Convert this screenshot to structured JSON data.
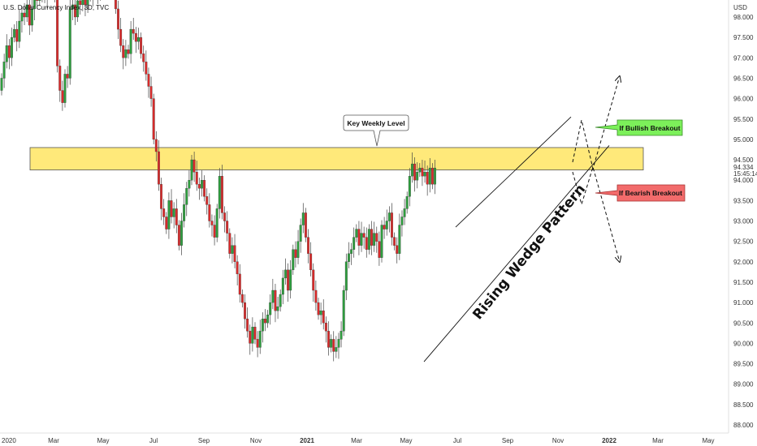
{
  "chart_data": {
    "type": "candlestick",
    "title": "U.S. Dollar Currency Index, 3D, TVC",
    "currency_label": "USD",
    "last_price": "94.334",
    "countdown": "15:45:14",
    "ylim": [
      88.0,
      98.0
    ],
    "y_ticks": [
      "98.000",
      "97.500",
      "97.000",
      "96.500",
      "96.000",
      "95.500",
      "95.000",
      "94.500",
      "94.000",
      "93.500",
      "93.000",
      "92.500",
      "92.000",
      "91.500",
      "91.000",
      "90.500",
      "90.000",
      "89.500",
      "89.000",
      "88.500",
      "88.000"
    ],
    "x_ticks": [
      "2020",
      "Mar",
      "May",
      "Jul",
      "Sep",
      "Nov",
      "2021",
      "Mar",
      "May",
      "Jul",
      "Sep",
      "Nov",
      "2022",
      "Mar",
      "May"
    ],
    "bold_x_ticks": [
      "2021",
      "2022"
    ],
    "colors": {
      "up": "#26a69a",
      "down": "#ef5350",
      "up_body": "#2e9e3e",
      "down_body": "#d92b2b",
      "zone": "#ffe14d"
    },
    "key_level": {
      "label": "Key Weekly Level",
      "from": 94.25,
      "to": 94.8
    },
    "pattern_label": "Rising Wedge Pattern",
    "bullish_label": "If Bullish Breakout",
    "bearish_label": "If Bearish Breakout",
    "wedge": {
      "upper": [
        [
          90.3,
          92.85
        ],
        [
          94.45,
          95.55
        ]
      ],
      "lower": [
        [
          89.55,
          89.55
        ],
        [
          93.05,
          94.85
        ]
      ]
    },
    "closes": [
      96.5,
      96.9,
      97.3,
      97.0,
      97.5,
      97.7,
      97.4,
      97.9,
      98.1,
      98.0,
      98.3,
      97.8,
      98.2,
      98.5,
      98.4,
      98.6,
      98.7,
      98.5,
      98.8,
      99.0,
      98.9,
      98.6,
      96.8,
      96.2,
      95.9,
      96.6,
      96.5,
      98.2,
      98.3,
      98.0,
      98.4,
      98.3,
      98.5,
      98.3,
      98.6,
      98.5,
      98.8,
      98.7,
      98.6,
      98.6,
      98.9,
      98.7,
      98.8,
      99.0,
      98.8,
      98.2,
      97.7,
      97.3,
      97.0,
      97.2,
      97.1,
      97.7,
      97.6,
      97.4,
      97.5,
      97.1,
      96.9,
      96.6,
      96.3,
      96.0,
      95.0,
      94.7,
      93.9,
      93.3,
      93.1,
      92.8,
      93.5,
      93.1,
      93.3,
      92.9,
      92.4,
      93.0,
      93.4,
      93.8,
      94.0,
      94.5,
      94.2,
      93.9,
      93.8,
      94.0,
      93.6,
      93.4,
      93.0,
      92.9,
      92.6,
      93.3,
      94.1,
      93.2,
      93.0,
      92.7,
      92.2,
      92.4,
      92.0,
      91.7,
      91.2,
      91.0,
      90.6,
      90.3,
      90.0,
      90.4,
      90.1,
      89.9,
      90.3,
      90.6,
      90.5,
      90.7,
      91.0,
      91.3,
      90.8,
      90.9,
      91.2,
      91.6,
      91.8,
      91.3,
      91.8,
      92.3,
      92.1,
      92.5,
      92.9,
      93.2,
      92.6,
      92.2,
      91.8,
      91.3,
      91.0,
      90.7,
      90.8,
      90.5,
      90.3,
      89.9,
      90.1,
      89.8,
      89.9,
      90.1,
      90.3,
      91.3,
      92.0,
      92.2,
      92.3,
      92.6,
      92.8,
      92.4,
      92.7,
      92.6,
      92.3,
      92.8,
      92.4,
      92.7,
      92.5,
      92.1,
      92.9,
      92.8,
      93.0,
      93.2,
      92.6,
      92.4,
      92.2,
      92.9,
      93.1,
      93.3,
      93.6,
      94.1,
      94.4,
      94.0,
      94.2,
      94.3,
      94.1,
      94.2,
      93.9,
      94.3,
      93.9,
      94.3
    ]
  }
}
